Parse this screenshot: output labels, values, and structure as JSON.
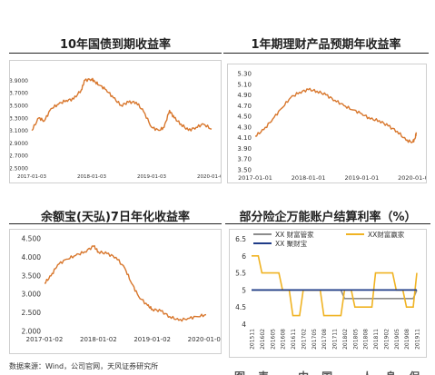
{
  "footer": {
    "source": "数据来源：Wind，公司官网，天风证券研究所",
    "cut_text": "图表 中国 人身保险"
  },
  "colors": {
    "orange": "#d8772d",
    "gold": "#f0b323",
    "blue": "#1f3c88",
    "gray": "#8c8c8c"
  },
  "chart_data": [
    {
      "type": "line",
      "title": "10年国债到期收益率",
      "yticks": [
        "3.9000",
        "3.7000",
        "3.5000",
        "3.3000",
        "3.1000",
        "2.9000",
        "2.7000",
        "2.5000"
      ],
      "ylim": [
        2.5,
        3.95
      ],
      "xticks": [
        "2017-01-03",
        "2018-01-03",
        "2019-01-03",
        "2020-01-03"
      ],
      "x": [
        "2017-01-03",
        "2017-02-15",
        "2017-03-20",
        "2017-05-01",
        "2017-06-15",
        "2017-08-01",
        "2017-09-15",
        "2017-11-01",
        "2017-11-22",
        "2018-01-03",
        "2018-01-20",
        "2018-02-20",
        "2018-04-01",
        "2018-05-15",
        "2018-07-01",
        "2018-08-15",
        "2018-10-01",
        "2018-11-15",
        "2019-01-03",
        "2019-02-15",
        "2019-03-20",
        "2019-04-22",
        "2019-05-20",
        "2019-07-01",
        "2019-08-15",
        "2019-10-01",
        "2019-11-15",
        "2020-01-03"
      ],
      "values": [
        3.1,
        3.3,
        3.25,
        3.45,
        3.52,
        3.58,
        3.6,
        3.75,
        3.9,
        3.92,
        3.88,
        3.82,
        3.75,
        3.62,
        3.5,
        3.55,
        3.55,
        3.4,
        3.15,
        3.1,
        3.15,
        3.42,
        3.3,
        3.2,
        3.1,
        3.15,
        3.2,
        3.12
      ]
    },
    {
      "type": "line",
      "title": "1年期理财产品预期年收益率",
      "yticks": [
        "5.30",
        "5.10",
        "4.90",
        "4.70",
        "4.50",
        "4.30",
        "4.10",
        "3.90",
        "3.70",
        "3.50"
      ],
      "ylim": [
        3.5,
        5.3
      ],
      "xticks": [
        "2017-01-01",
        "2018-01-01",
        "2019-01-01",
        "2020-01-01"
      ],
      "x": [
        "2017-01-01",
        "2017-03-01",
        "2017-05-01",
        "2017-07-01",
        "2017-09-01",
        "2017-11-01",
        "2018-01-01",
        "2018-03-01",
        "2018-05-01",
        "2018-07-01",
        "2018-09-01",
        "2018-11-01",
        "2019-01-01",
        "2019-03-01",
        "2019-05-01",
        "2019-07-01",
        "2019-09-01",
        "2019-11-01",
        "2019-12-15",
        "2020-01-01",
        "2020-01-10"
      ],
      "values": [
        4.13,
        4.25,
        4.45,
        4.65,
        4.85,
        4.95,
        5.0,
        4.97,
        4.9,
        4.8,
        4.7,
        4.62,
        4.55,
        4.45,
        4.42,
        4.32,
        4.22,
        4.05,
        4.02,
        4.08,
        4.2
      ]
    },
    {
      "type": "line",
      "title": "余额宝(天弘)7日年化收益率",
      "yticks": [
        "4.500",
        "4.000",
        "3.500",
        "3.000",
        "2.500",
        "2.000"
      ],
      "ylim": [
        2.0,
        4.5
      ],
      "xticks": [
        "2017-01-02",
        "2018-01-02",
        "2019-01-02",
        "2020-01-02"
      ],
      "x": [
        "2017-01-02",
        "2017-02-15",
        "2017-04-01",
        "2017-06-01",
        "2017-08-01",
        "2017-10-01",
        "2017-12-01",
        "2018-01-02",
        "2018-03-01",
        "2018-05-01",
        "2018-07-01",
        "2018-08-15",
        "2018-10-01",
        "2018-12-01",
        "2019-01-02",
        "2019-03-01",
        "2019-05-01",
        "2019-07-01",
        "2019-09-01",
        "2019-11-01",
        "2020-01-02"
      ],
      "values": [
        3.3,
        3.5,
        3.8,
        3.95,
        4.05,
        4.15,
        4.3,
        4.15,
        4.1,
        4.0,
        3.7,
        3.3,
        2.95,
        2.7,
        2.6,
        2.55,
        2.4,
        2.3,
        2.35,
        2.4,
        2.45
      ]
    },
    {
      "type": "line",
      "title": "部分险企万能账户结算利率（%）",
      "ylim": [
        4.0,
        6.5
      ],
      "yticks": [
        "6.5",
        "6",
        "5.5",
        "5",
        "4.5",
        "4"
      ],
      "categories": [
        "201511",
        "201602",
        "201605",
        "201608",
        "201611",
        "201702",
        "201705",
        "201708",
        "201711",
        "201802",
        "201805",
        "201808",
        "201811",
        "201902",
        "201905",
        "201908",
        "201911"
      ],
      "series": [
        {
          "name": "XX 财富管家",
          "values": [
            5.0,
            5.0,
            5.0,
            5.0,
            5.0,
            5.0,
            5.0,
            5.0,
            5.0,
            4.75,
            4.75,
            4.75,
            4.75,
            4.75,
            4.75,
            4.75,
            5.0
          ]
        },
        {
          "name": "XX财富赢家",
          "values": [
            6.0,
            5.5,
            5.5,
            5.0,
            4.25,
            5.0,
            5.0,
            4.25,
            4.25,
            5.0,
            4.5,
            4.5,
            5.5,
            5.5,
            5.0,
            4.5,
            5.5
          ]
        },
        {
          "name": "XX 聚财宝",
          "values": [
            5.0,
            5.0,
            5.0,
            5.0,
            5.0,
            5.0,
            5.0,
            5.0,
            5.0,
            5.0,
            5.0,
            5.0,
            5.0,
            5.0,
            5.0,
            5.0,
            5.0
          ]
        }
      ]
    }
  ]
}
